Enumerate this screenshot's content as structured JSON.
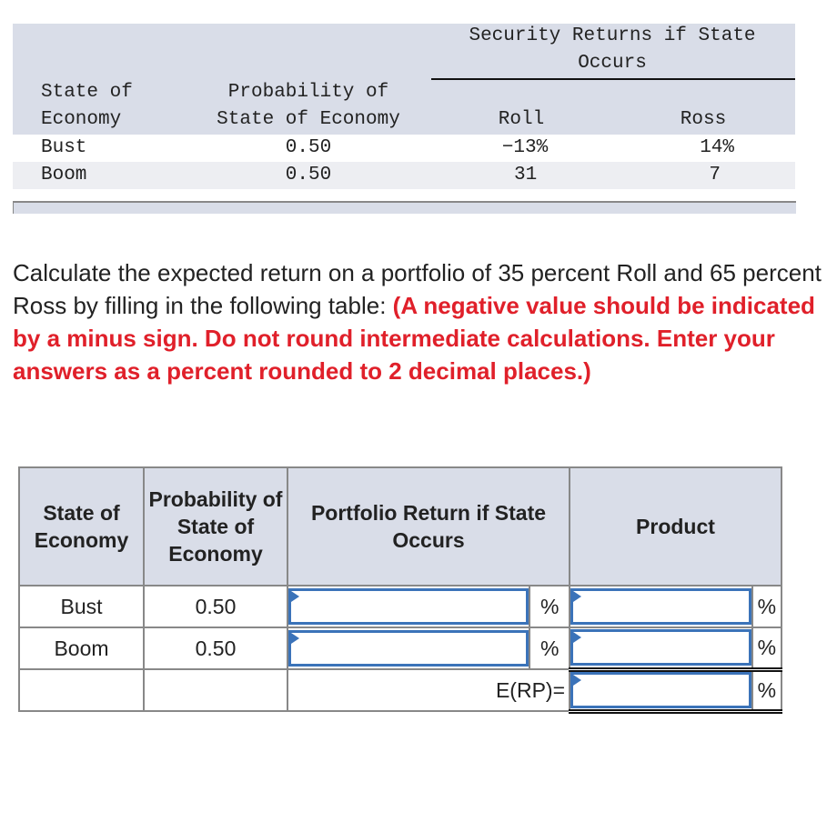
{
  "given_table": {
    "group_header": [
      "Security Returns if State",
      "Occurs"
    ],
    "col_state": [
      "State of",
      "Economy"
    ],
    "col_prob": [
      "Probability of",
      "State of Economy"
    ],
    "col_roll": "Roll",
    "col_ross": "Ross",
    "rows": [
      {
        "state": "Bust",
        "prob": "0.50",
        "roll": "−13%",
        "ross": "14%"
      },
      {
        "state": "Boom",
        "prob": "0.50",
        "roll": "31",
        "ross": "7"
      }
    ]
  },
  "question": {
    "text": "Calculate the expected return on a portfolio of 35 percent Roll and 65 percent Ross by filling in the following table: ",
    "instructions": "(A negative value should be indicated by a minus sign. Do not round intermediate calculations. Enter your answers as a percent rounded to 2 decimal places.)"
  },
  "answer_table": {
    "headers": {
      "state": "State of Economy",
      "prob": "Probability of State of Economy",
      "ret": "Portfolio Return if State Occurs",
      "product": "Product"
    },
    "rows": [
      {
        "state": "Bust",
        "prob": "0.50",
        "ret": "",
        "product": ""
      },
      {
        "state": "Boom",
        "prob": "0.50",
        "ret": "",
        "product": ""
      }
    ],
    "total_label": "E(RP)=",
    "total": "",
    "unit": "%"
  },
  "colors": {
    "header_bg": "#d9dde8",
    "input_border": "#3b73b9",
    "instruction_red": "#e0202a"
  }
}
